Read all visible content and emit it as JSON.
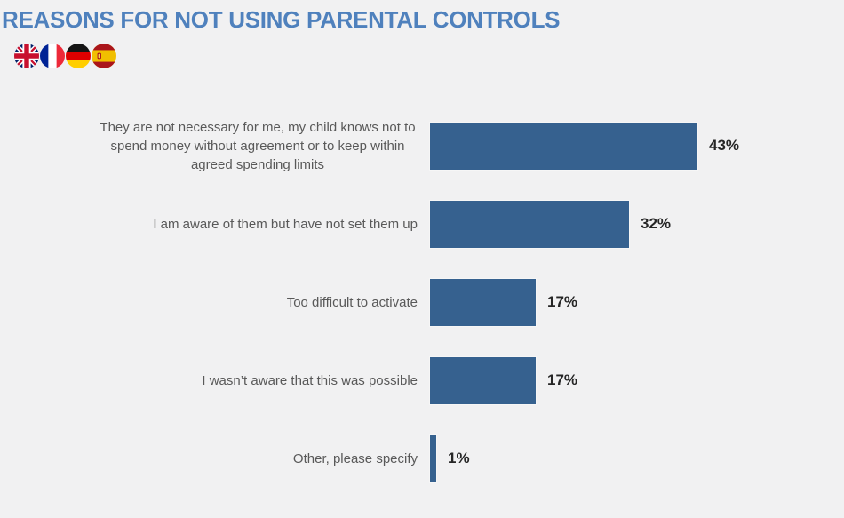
{
  "header": {
    "title": "REASONS FOR NOT USING PARENTAL CONTROLS",
    "flag_icons": [
      "flag-uk-icon",
      "flag-france-icon",
      "flag-germany-icon",
      "flag-spain-icon"
    ]
  },
  "colors": {
    "background": "#F1F1F2",
    "title": "#4F81BD",
    "bar": "#36618F",
    "label": "#595959",
    "value": "#262626"
  },
  "chart_data": {
    "type": "bar",
    "orientation": "horizontal",
    "title": "REASONS FOR NOT USING PARENTAL CONTROLS",
    "categories": [
      "They are not necessary for me, my child knows not to spend money without agreement or to keep within agreed spending limits",
      "I am aware of them but have not set them up",
      "Too difficult to activate",
      "I wasn’t aware that this was possible",
      "Other, please specify"
    ],
    "values": [
      43,
      32,
      17,
      17,
      1
    ],
    "value_labels": [
      "43%",
      "32%",
      "17%",
      "17%",
      "1%"
    ],
    "xlabel": "",
    "ylabel": "",
    "xlim": [
      0,
      45
    ],
    "grid": false,
    "legend": false,
    "data_labels_position": "outside-end"
  }
}
